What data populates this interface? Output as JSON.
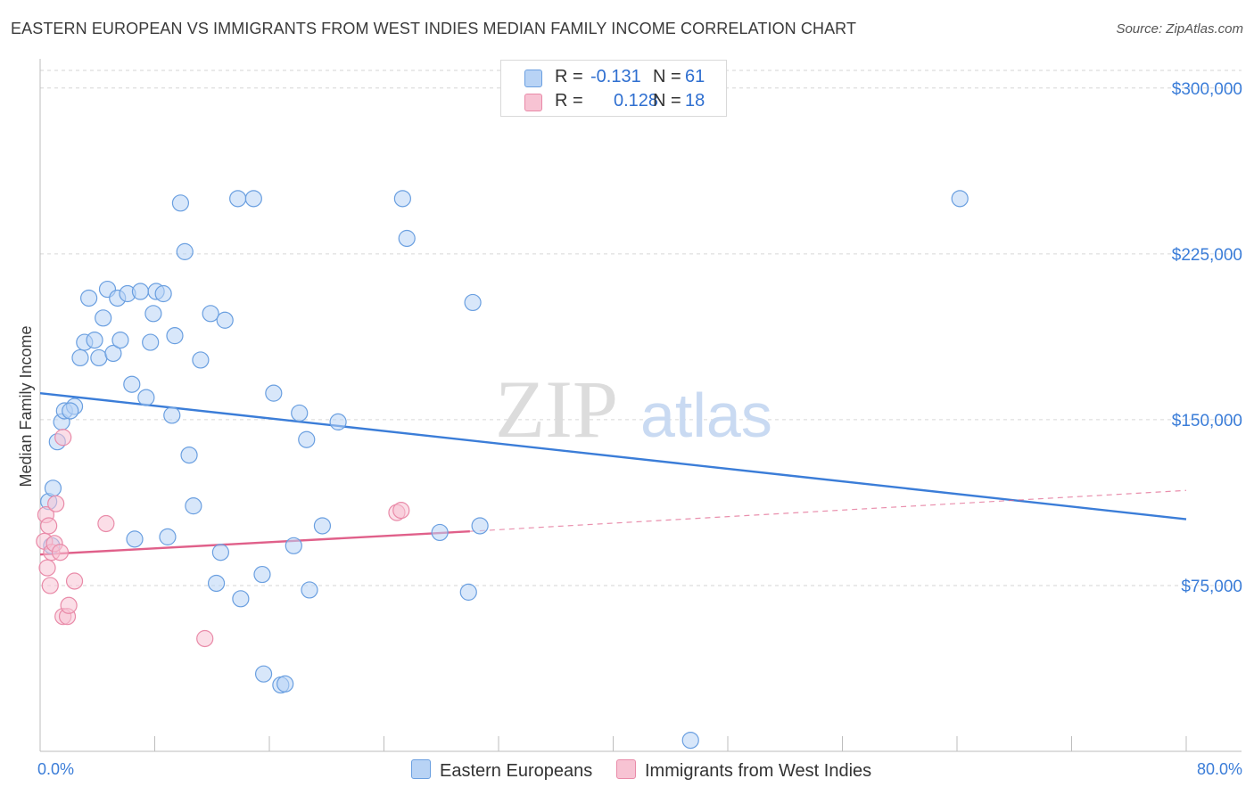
{
  "title": "EASTERN EUROPEAN VS IMMIGRANTS FROM WEST INDIES MEDIAN FAMILY INCOME CORRELATION CHART",
  "source": "Source: ZipAtlas.com",
  "watermark": {
    "zip": "ZIP",
    "atlas": "atlas"
  },
  "legend": {
    "r_label": "R =",
    "n_label": "N =",
    "rows": [
      {
        "r": "-0.131",
        "n": "61",
        "fill": "#b8d3f5",
        "stroke": "#6a9fe0"
      },
      {
        "r": "0.128",
        "n": "18",
        "fill": "#f7c3d3",
        "stroke": "#e98aa8"
      }
    ]
  },
  "chart_data": {
    "type": "scatter",
    "xlabel": "",
    "ylabel": "Median Family Income",
    "xlim": [
      0,
      80
    ],
    "ylim": [
      0,
      310000
    ],
    "x_tick_labels": [
      "0.0%",
      "80.0%"
    ],
    "y_ticks": [
      75000,
      150000,
      225000,
      300000
    ],
    "y_tick_labels": [
      "$75,000",
      "$150,000",
      "$225,000",
      "$300,000"
    ],
    "grid": "horizontal dashed",
    "series": [
      {
        "name": "Eastern Europeans",
        "color": "#3b7dd8",
        "fill": "#b8d3f5",
        "stroke": "#6a9fe0",
        "trend": {
          "x": [
            0,
            80
          ],
          "y": [
            162000,
            105000
          ],
          "style": "solid"
        },
        "points": [
          [
            0.6,
            113000
          ],
          [
            0.9,
            119000
          ],
          [
            1.2,
            140000
          ],
          [
            1.5,
            149000
          ],
          [
            1.7,
            154000
          ],
          [
            2.4,
            156000
          ],
          [
            2.1,
            154000
          ],
          [
            2.8,
            178000
          ],
          [
            3.1,
            185000
          ],
          [
            3.4,
            205000
          ],
          [
            3.8,
            186000
          ],
          [
            4.1,
            178000
          ],
          [
            4.4,
            196000
          ],
          [
            4.7,
            209000
          ],
          [
            5.1,
            180000
          ],
          [
            5.4,
            205000
          ],
          [
            5.6,
            186000
          ],
          [
            6.1,
            207000
          ],
          [
            6.4,
            166000
          ],
          [
            7.0,
            208000
          ],
          [
            7.4,
            160000
          ],
          [
            7.7,
            185000
          ],
          [
            7.9,
            198000
          ],
          [
            8.1,
            208000
          ],
          [
            8.6,
            207000
          ],
          [
            9.2,
            152000
          ],
          [
            9.4,
            188000
          ],
          [
            9.8,
            248000
          ],
          [
            10.1,
            226000
          ],
          [
            10.4,
            134000
          ],
          [
            10.7,
            111000
          ],
          [
            11.2,
            177000
          ],
          [
            11.9,
            198000
          ],
          [
            12.9,
            195000
          ],
          [
            13.8,
            250000
          ],
          [
            14.9,
            250000
          ],
          [
            16.3,
            162000
          ],
          [
            18.1,
            153000
          ],
          [
            18.6,
            141000
          ],
          [
            20.8,
            149000
          ],
          [
            25.3,
            250000
          ],
          [
            25.6,
            232000
          ],
          [
            30.2,
            203000
          ],
          [
            6.6,
            96000
          ],
          [
            8.9,
            97000
          ],
          [
            12.6,
            90000
          ],
          [
            15.5,
            80000
          ],
          [
            17.7,
            93000
          ],
          [
            19.7,
            102000
          ],
          [
            27.9,
            99000
          ],
          [
            30.7,
            102000
          ],
          [
            12.3,
            76000
          ],
          [
            14.0,
            69000
          ],
          [
            18.8,
            73000
          ],
          [
            29.9,
            72000
          ],
          [
            15.6,
            35000
          ],
          [
            16.8,
            30000
          ],
          [
            17.1,
            30500
          ],
          [
            45.4,
            5000
          ],
          [
            64.2,
            250000
          ],
          [
            0.8,
            93000
          ]
        ]
      },
      {
        "name": "Immigrants from West Indies",
        "color": "#e0608a",
        "fill": "#f7c3d3",
        "stroke": "#e98aa8",
        "trend": {
          "x": [
            0,
            30
          ],
          "y": [
            89000,
            99500
          ],
          "style": "solid",
          "ext_x": [
            30,
            80
          ],
          "ext_y": [
            99500,
            118000
          ],
          "ext_style": "dashed"
        },
        "points": [
          [
            0.3,
            95000
          ],
          [
            0.4,
            107000
          ],
          [
            0.5,
            83000
          ],
          [
            0.6,
            102000
          ],
          [
            0.7,
            75000
          ],
          [
            0.8,
            90000
          ],
          [
            1.0,
            94000
          ],
          [
            1.1,
            112000
          ],
          [
            1.4,
            90000
          ],
          [
            1.6,
            142000
          ],
          [
            1.6,
            61000
          ],
          [
            1.9,
            61000
          ],
          [
            2.0,
            66000
          ],
          [
            2.4,
            77000
          ],
          [
            4.6,
            103000
          ],
          [
            11.5,
            51000
          ],
          [
            24.9,
            108000
          ],
          [
            25.2,
            109000
          ]
        ]
      }
    ]
  }
}
